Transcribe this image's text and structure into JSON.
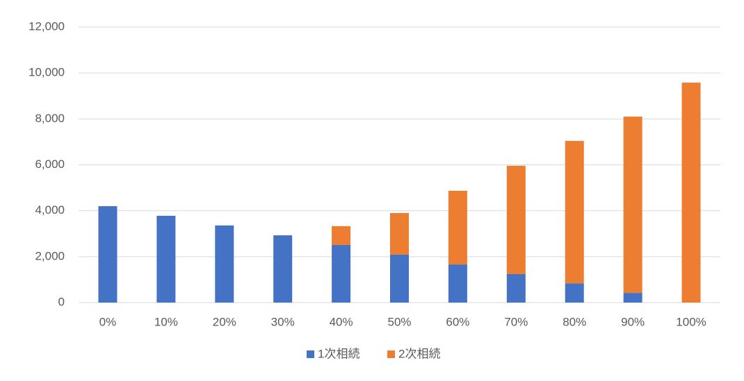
{
  "chart_data": {
    "type": "stacked_bar",
    "categories": [
      "0%",
      "10%",
      "20%",
      "30%",
      "40%",
      "50%",
      "60%",
      "70%",
      "80%",
      "90%",
      "100%"
    ],
    "series": [
      {
        "name": "1次相続",
        "color": "#4472c4",
        "values": [
          4200,
          3780,
          3360,
          2930,
          2510,
          2090,
          1660,
          1240,
          840,
          420,
          0
        ]
      },
      {
        "name": "2次相続",
        "color": "#ed7d31",
        "values": [
          0,
          0,
          0,
          0,
          820,
          1810,
          3210,
          4720,
          6200,
          7680,
          9580
        ]
      }
    ],
    "ylim": [
      0,
      12000
    ],
    "yticks": [
      0,
      {
        "value": 2000,
        "label": "2,000"
      },
      {
        "value": 4000,
        "label": "4,000"
      },
      {
        "value": 6000,
        "label": "6,000"
      },
      {
        "value": 8000,
        "label": "8,000"
      },
      {
        "value": 10000,
        "label": "10,000"
      },
      {
        "value": 12000,
        "label": "12,000"
      }
    ],
    "grid": true,
    "legend": "bottom"
  }
}
